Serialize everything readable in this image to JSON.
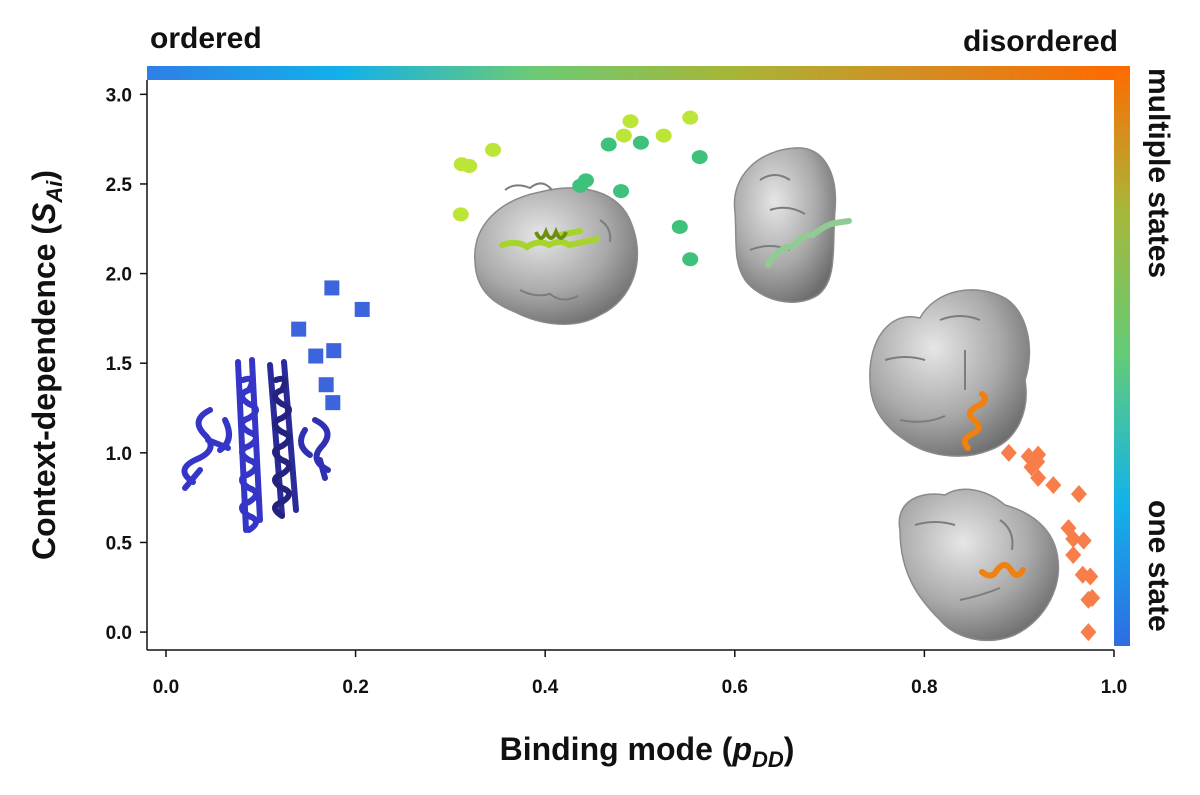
{
  "colors": {
    "gradient": [
      "#2f7fe6",
      "#12b0ea",
      "#6cca74",
      "#a6b637",
      "#d58c22",
      "#ff6a00"
    ],
    "vertical_gradient": [
      "#ff6a00",
      "#a7b73a",
      "#63cb78",
      "#13b3e8",
      "#2e6ce3"
    ],
    "squares": "#3c64dc",
    "circles_yellow": "#bce637",
    "circles_green": "#3ec17a",
    "diamonds": "#f77e4a"
  },
  "labels": {
    "ordered": "ordered",
    "disordered": "disordered",
    "multiple_states": "multiple states",
    "one_state": "one state"
  },
  "chart_data": {
    "type": "scatter",
    "xlabel": "Binding mode (",
    "xlabel_var": "p",
    "xlabel_sub": "DD",
    "xlabel_end": ")",
    "ylabel": "Context-dependence (",
    "ylabel_var": "S",
    "ylabel_sub": "Ai",
    "ylabel_end": ")",
    "xlim": [
      -0.02,
      1.0
    ],
    "ylim": [
      -0.1,
      3.08
    ],
    "xticks": [
      "0.0",
      "0.2",
      "0.4",
      "0.6",
      "0.8",
      "1.0"
    ],
    "yticks": [
      "0.0",
      "0.5",
      "1.0",
      "1.5",
      "2.0",
      "2.5",
      "3.0"
    ],
    "series": [
      {
        "marker": "square",
        "color": "#3c64dc",
        "points": [
          [
            0.14,
            1.69
          ],
          [
            0.175,
            1.92
          ],
          [
            0.207,
            1.8
          ],
          [
            0.158,
            1.54
          ],
          [
            0.177,
            1.57
          ],
          [
            0.169,
            1.38
          ],
          [
            0.176,
            1.28
          ]
        ]
      },
      {
        "marker": "circle",
        "color": "#bce637",
        "points": [
          [
            0.312,
            2.61
          ],
          [
            0.32,
            2.6
          ],
          [
            0.345,
            2.69
          ],
          [
            0.311,
            2.33
          ],
          [
            0.483,
            2.77
          ],
          [
            0.49,
            2.85
          ],
          [
            0.525,
            2.77
          ],
          [
            0.553,
            2.87
          ]
        ]
      },
      {
        "marker": "circle",
        "color": "#3ec17a",
        "points": [
          [
            0.467,
            2.72
          ],
          [
            0.501,
            2.73
          ],
          [
            0.563,
            2.65
          ],
          [
            0.443,
            2.52
          ],
          [
            0.437,
            2.49
          ],
          [
            0.48,
            2.46
          ],
          [
            0.542,
            2.26
          ],
          [
            0.553,
            2.08
          ]
        ]
      },
      {
        "marker": "diamond",
        "color": "#f77e4a",
        "points": [
          [
            0.889,
            1.0
          ],
          [
            0.91,
            0.98
          ],
          [
            0.92,
            0.99
          ],
          [
            0.919,
            0.95
          ],
          [
            0.913,
            0.92
          ],
          [
            0.92,
            0.86
          ],
          [
            0.936,
            0.82
          ],
          [
            0.963,
            0.77
          ],
          [
            0.952,
            0.58
          ],
          [
            0.957,
            0.52
          ],
          [
            0.968,
            0.51
          ],
          [
            0.957,
            0.43
          ],
          [
            0.967,
            0.32
          ],
          [
            0.975,
            0.31
          ],
          [
            0.977,
            0.19
          ],
          [
            0.973,
            0.18
          ],
          [
            0.973,
            0.0
          ]
        ]
      }
    ]
  }
}
